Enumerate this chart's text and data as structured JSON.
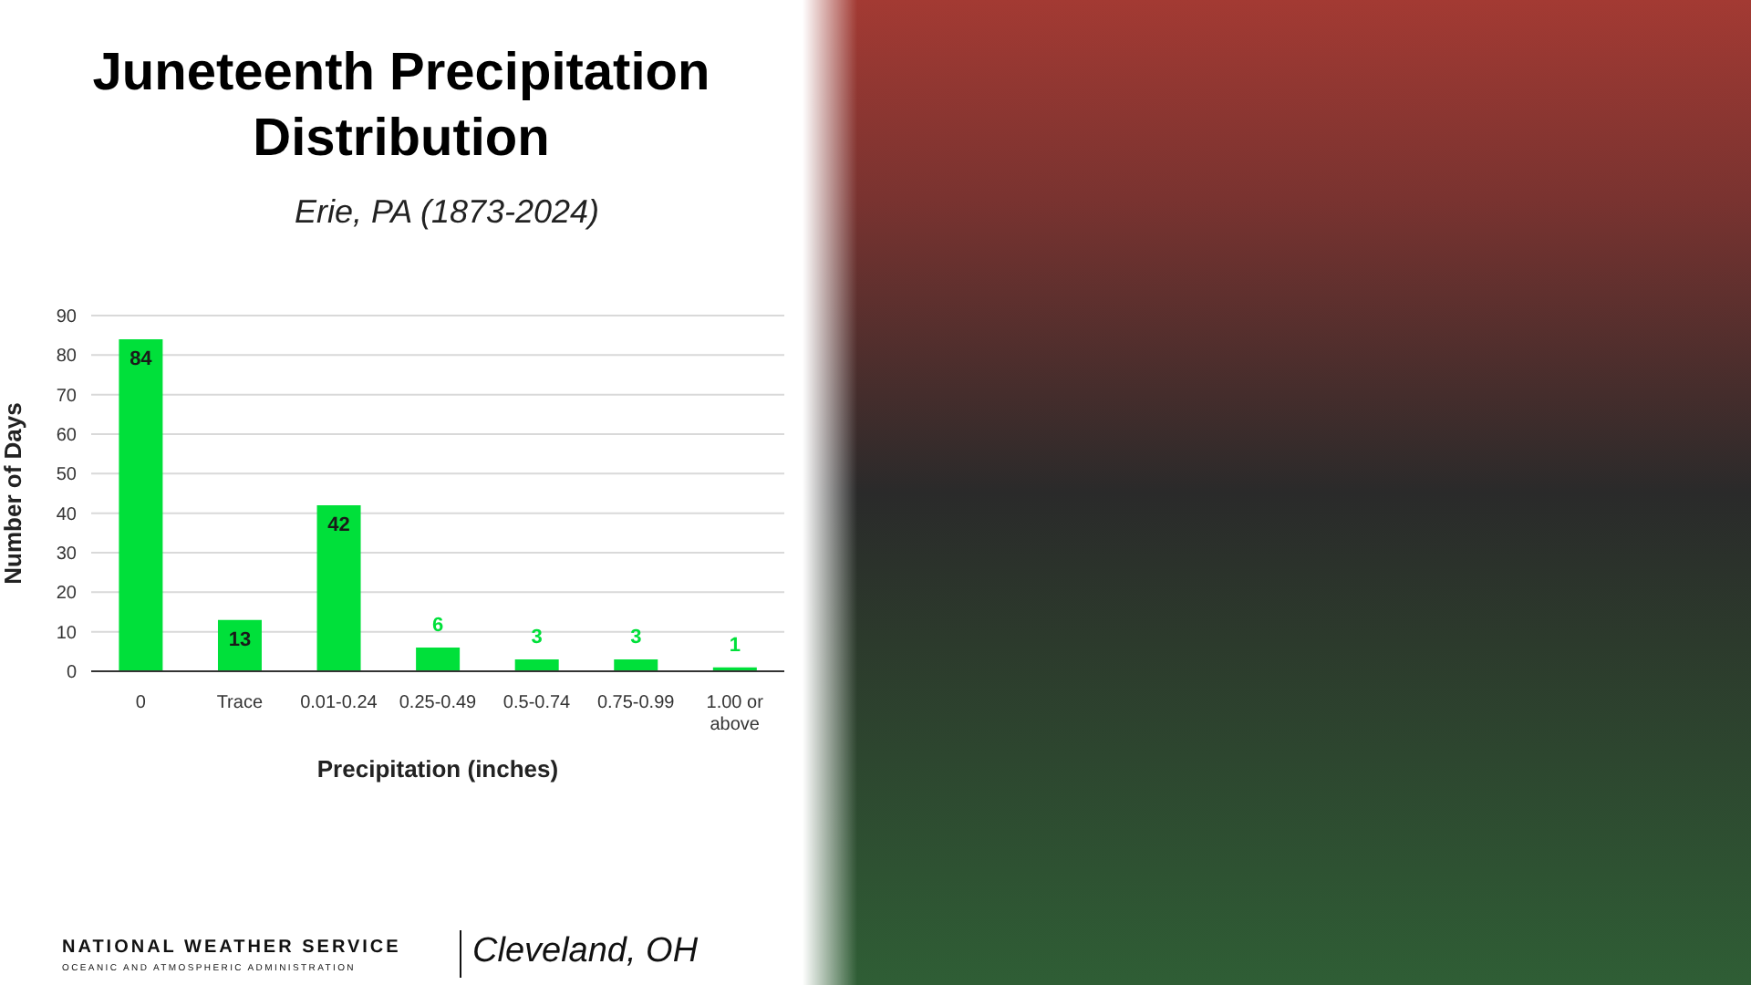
{
  "chart_data": {
    "type": "bar",
    "title": "Juneteenth Precipitation Distribution",
    "subtitle": "Erie, PA (1873-2024)",
    "xlabel": "Precipitation (inches)",
    "ylabel": "Number of Days",
    "categories": [
      "0",
      "Trace",
      "0.01-0.24",
      "0.25-0.49",
      "0.5-0.74",
      "0.75-0.99",
      "1.00 or above"
    ],
    "values": [
      84,
      13,
      42,
      6,
      3,
      3,
      1
    ],
    "color": "#00e03a",
    "ylim": [
      0,
      90
    ],
    "yticks": [
      0,
      10,
      20,
      30,
      40,
      50,
      60,
      70,
      80,
      90
    ],
    "grid": "y",
    "data_labels": true,
    "annotations": [
      "NATIONAL WEATHER SERVICE",
      "OCEANIC AND ATMOSPHERIC ADMINISTRATION",
      "Cleveland, OH"
    ]
  }
}
